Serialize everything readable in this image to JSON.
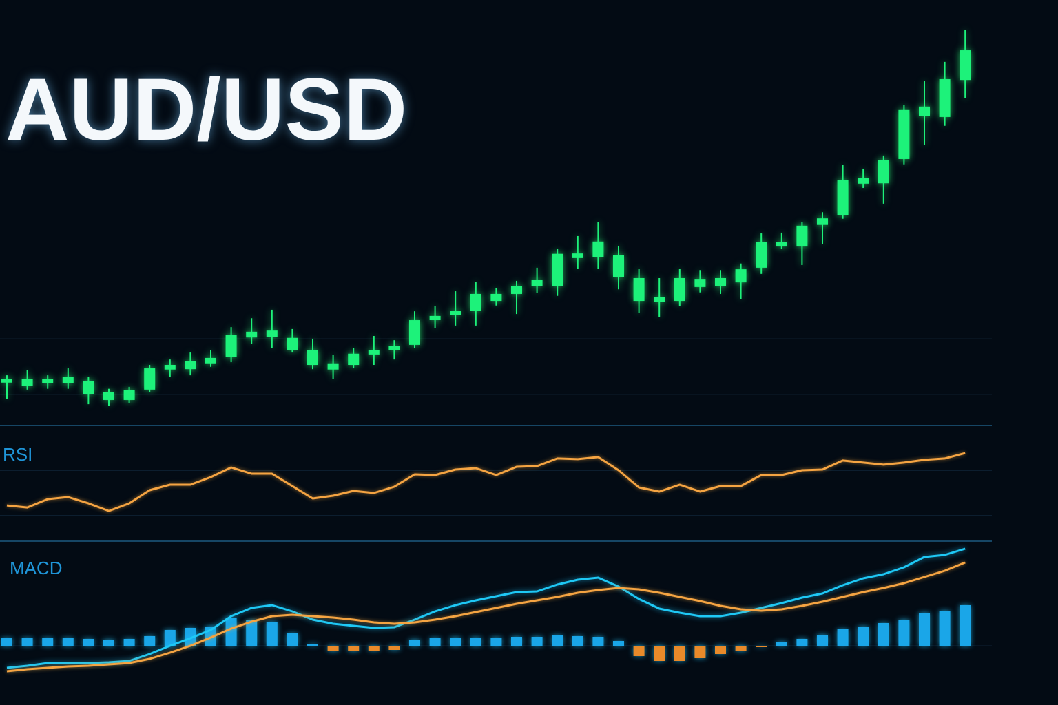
{
  "chart_data": [
    {
      "type": "candlestick",
      "title": "AUD/USD",
      "ylim": [
        0,
        100
      ],
      "series": [
        {
          "color": "#1df27a",
          "open": [
            7.9,
            7.0,
            7.7,
            7.7,
            5.0,
            3.4,
            3.4,
            6.1,
            11.3,
            11.4,
            12.9,
            14.6,
            19.6,
            19.8,
            16.4,
            12.5,
            11.3,
            12.5,
            15.2,
            16.4,
            17.7,
            24.1,
            25.5,
            26.6,
            29.1,
            30.9,
            33.0,
            33.0,
            40.2,
            40.5,
            35.2,
            29.1,
            28.8,
            29.1,
            32.7,
            32.9,
            33.9,
            37.7,
            43.2,
            43.2,
            48.8,
            51.3,
            59.5,
            59.6,
            65.9,
            77.0,
            76.8,
            86.4
          ],
          "close": [
            8.9,
            8.8,
            8.9,
            9.3,
            8.4,
            5.4,
            5.9,
            11.6,
            12.5,
            13.4,
            14.3,
            20.2,
            21.1,
            21.4,
            19.5,
            16.4,
            12.9,
            15.4,
            16.3,
            17.5,
            24.1,
            25.2,
            26.6,
            30.9,
            30.9,
            32.9,
            34.5,
            41.3,
            41.4,
            44.5,
            40.9,
            35.0,
            30.0,
            35.0,
            34.8,
            35.0,
            37.3,
            44.3,
            44.3,
            48.6,
            50.5,
            60.4,
            60.9,
            65.7,
            78.6,
            79.5,
            86.6,
            94.1
          ],
          "high": [
            9.8,
            11.1,
            9.8,
            11.6,
            9.3,
            6.3,
            6.8,
            12.5,
            13.9,
            15.7,
            16.4,
            22.3,
            24.6,
            26.8,
            21.8,
            19.3,
            15.0,
            16.8,
            20.0,
            18.9,
            26.4,
            27.7,
            31.6,
            34.1,
            32.5,
            34.3,
            37.7,
            42.5,
            45.9,
            49.5,
            43.4,
            37.5,
            35.0,
            37.5,
            37.1,
            37.1,
            38.8,
            46.6,
            46.8,
            49.6,
            52.1,
            64.3,
            63.4,
            66.8,
            80.0,
            86.1,
            91.1,
            99.3
          ],
          "low": [
            3.6,
            6.1,
            6.3,
            6.3,
            2.3,
            1.8,
            2.5,
            5.4,
            9.3,
            9.8,
            12.0,
            13.2,
            17.9,
            16.8,
            15.7,
            11.4,
            8.9,
            11.6,
            12.5,
            13.9,
            16.8,
            22.0,
            22.7,
            22.7,
            27.9,
            25.7,
            31.1,
            30.4,
            37.5,
            37.5,
            32.1,
            25.9,
            25.0,
            27.7,
            31.3,
            30.9,
            29.6,
            36.1,
            42.5,
            38.4,
            43.9,
            50.4,
            58.4,
            54.3,
            64.5,
            69.6,
            74.5,
            81.6
          ]
        }
      ]
    },
    {
      "type": "line",
      "title": "RSI",
      "ylim": [
        0,
        100
      ],
      "series": [
        {
          "color": "#f5a442",
          "values": [
            30.5,
            28.7,
            35.9,
            37.7,
            32.3,
            25.7,
            32.3,
            43.7,
            48.5,
            48.5,
            55.1,
            63.5,
            58.1,
            58.1,
            47.3,
            36.5,
            38.9,
            43.1,
            41.3,
            46.7,
            57.5,
            56.9,
            61.7,
            62.9,
            56.9,
            64.1,
            64.7,
            71.3,
            70.7,
            72.5,
            61.1,
            46.1,
            42.5,
            48.5,
            42.5,
            47.3,
            47.3,
            56.9,
            56.9,
            61.1,
            61.7,
            69.5,
            67.7,
            65.9,
            67.7,
            70.1,
            71.3,
            76.0
          ]
        }
      ]
    },
    {
      "type": "macd",
      "title": "MACD",
      "ylim": [
        -5,
        15
      ],
      "series": [
        {
          "color": "#1ec8f5",
          "values": [
            -3.2,
            -2.9,
            -2.5,
            -2.5,
            -2.5,
            -2.4,
            -2.2,
            -1.2,
            0,
            1.1,
            2.3,
            4.3,
            5.5,
            5.9,
            5.0,
            3.8,
            3.2,
            2.9,
            2.6,
            2.7,
            3.8,
            5.0,
            5.9,
            6.6,
            7.2,
            7.8,
            7.9,
            8.9,
            9.6,
            9.9,
            8.6,
            6.8,
            5.4,
            4.8,
            4.3,
            4.3,
            4.8,
            5.5,
            6.2,
            7.0,
            7.6,
            8.8,
            9.8,
            10.4,
            11.4,
            12.9,
            13.2,
            14.1
          ]
        },
        {
          "color": "#f5a442",
          "values": [
            -3.7,
            -3.4,
            -3.2,
            -3.0,
            -2.9,
            -2.7,
            -2.5,
            -1.9,
            -1.0,
            0,
            1.2,
            2.5,
            3.5,
            4.3,
            4.5,
            4.3,
            4.1,
            3.8,
            3.4,
            3.2,
            3.4,
            3.8,
            4.3,
            4.9,
            5.5,
            6.1,
            6.6,
            7.1,
            7.7,
            8.1,
            8.4,
            8.2,
            7.7,
            7.1,
            6.5,
            5.8,
            5.3,
            5.1,
            5.3,
            5.8,
            6.4,
            7.1,
            7.8,
            8.4,
            9.1,
            10.0,
            10.9,
            12.1
          ]
        }
      ],
      "histogram": {
        "positive_color": "#1aa6e8",
        "negative_color": "#e88a2a",
        "values": [
          1.1,
          1.1,
          1.1,
          1.1,
          1.0,
          0.9,
          1.0,
          1.4,
          2.3,
          2.6,
          2.8,
          4.0,
          3.7,
          3.5,
          1.8,
          0.3,
          -0.8,
          -0.8,
          -0.7,
          -0.6,
          0.9,
          1.1,
          1.2,
          1.2,
          1.2,
          1.3,
          1.3,
          1.5,
          1.4,
          1.3,
          0.7,
          -1.5,
          -2.2,
          -2.2,
          -1.8,
          -1.2,
          -0.8,
          -0.2,
          0.6,
          1.0,
          1.6,
          2.4,
          2.8,
          3.3,
          3.8,
          4.8,
          5.1,
          5.9
        ]
      }
    }
  ]
}
